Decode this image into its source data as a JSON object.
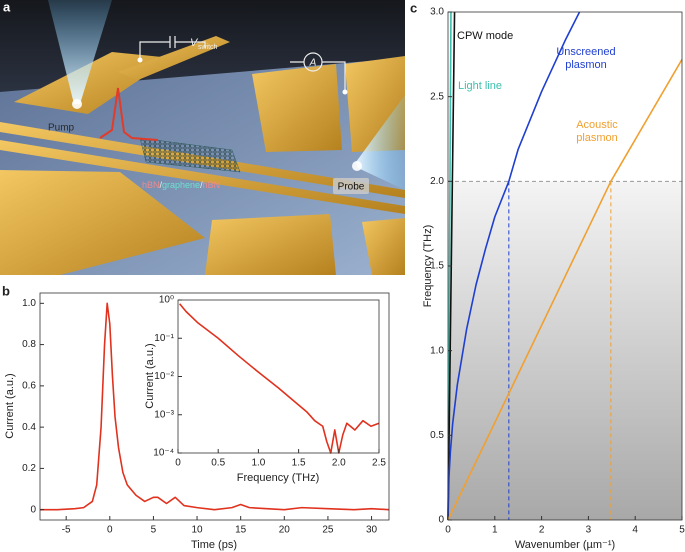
{
  "illustration": {
    "panel": "a",
    "pump": "Pump",
    "probe": "Probe",
    "switch_symbol": "V",
    "switch_subscript": "switch",
    "ammeter": "A",
    "stack": [
      "hBN",
      "/",
      "graphene",
      "/",
      "hBN"
    ]
  },
  "chart_data": [
    {
      "type": "line",
      "panel": "b",
      "xlabel": "Time (ps)",
      "ylabel": "Current (a.u.)",
      "xlim": [
        -8,
        32
      ],
      "ylim": [
        -0.05,
        1.05
      ],
      "xticks": [
        -5,
        0,
        5,
        10,
        15,
        20,
        25,
        30
      ],
      "yticks": [
        0,
        0.2,
        0.4,
        0.6,
        0.8,
        {
          "value": 1,
          "label": "1.0"
        }
      ],
      "color": "#e0321e",
      "x": [
        -8,
        -6,
        -4,
        -3,
        -2,
        -1.5,
        -1,
        -0.6,
        -0.3,
        0,
        0.3,
        0.6,
        1,
        1.5,
        2,
        3,
        4,
        5,
        5.5,
        6.5,
        7.5,
        8.5,
        10,
        12,
        14,
        15,
        16,
        18,
        20,
        22,
        25,
        28,
        30,
        32
      ],
      "values": [
        0,
        0,
        0.005,
        0.01,
        0.04,
        0.12,
        0.4,
        0.8,
        1.0,
        0.9,
        0.65,
        0.45,
        0.3,
        0.18,
        0.12,
        0.07,
        0.04,
        0.06,
        0.06,
        0.03,
        0.06,
        0.02,
        0.01,
        0,
        0.01,
        0.025,
        0.01,
        0.005,
        0,
        0.01,
        0.005,
        0,
        0.005,
        0
      ]
    },
    {
      "type": "line",
      "xlabel": "Frequency (THz)",
      "ylabel": "Current (a.u.)",
      "xlim": [
        0,
        2.5
      ],
      "ylim": [
        0.0001,
        1
      ],
      "log_y": true,
      "xticks": [
        0,
        0.5,
        {
          "value": 1,
          "label": "1.0"
        },
        1.5,
        {
          "value": 2,
          "label": "2.0"
        },
        2.5
      ],
      "yticks": [
        {
          "value": 1,
          "label": "10⁰"
        },
        {
          "value": 0.1,
          "label": "10⁻¹"
        },
        {
          "value": 0.01,
          "label": "10⁻²"
        },
        {
          "value": 0.001,
          "label": "10⁻³"
        },
        {
          "value": 0.0001,
          "label": "10⁻⁴"
        }
      ],
      "color": "#e0321e",
      "x": [
        0.02,
        0.1,
        0.25,
        0.5,
        0.75,
        1.0,
        1.25,
        1.5,
        1.6,
        1.7,
        1.8,
        1.85,
        1.9,
        1.95,
        2.0,
        2.05,
        2.1,
        2.2,
        2.3,
        2.4,
        2.5
      ],
      "values": [
        0.8,
        0.5,
        0.25,
        0.1,
        0.035,
        0.013,
        0.005,
        0.0018,
        0.0012,
        0.0007,
        0.0005,
        0.0002,
        0.0001,
        0.0004,
        0.0001,
        0.0003,
        0.0006,
        0.0004,
        0.0007,
        0.0005,
        0.0006
      ]
    },
    {
      "type": "line",
      "panel": "c",
      "xlabel": "Wavenumber (µm⁻¹)",
      "ylabel": "Frequency (THz)",
      "xlim": [
        0,
        5
      ],
      "ylim": [
        0,
        3
      ],
      "xticks": [
        0,
        1,
        2,
        3,
        4,
        5
      ],
      "yticks": [
        0,
        0.5,
        {
          "value": 1,
          "label": "1.0"
        },
        1.5,
        {
          "value": 2,
          "label": "2.0"
        },
        2.5,
        {
          "value": 3,
          "label": "3.0"
        }
      ],
      "hline": {
        "y": 2,
        "color": "#999999"
      },
      "vlines": [
        {
          "x": 1.3,
          "color": "#1f3fd0"
        },
        {
          "x": 3.48,
          "color": "#f0a030"
        }
      ],
      "series": [
        {
          "name": "Light line",
          "color": "#3cbfae",
          "x": [
            0,
            0.063
          ],
          "values": [
            0,
            3
          ]
        },
        {
          "name": "CPW mode",
          "color": "#111111",
          "x": [
            0,
            0.14
          ],
          "values": [
            0,
            3
          ]
        },
        {
          "name": "Unscreened plasmon",
          "color": "#1f3fd0",
          "x": [
            0,
            0.02,
            0.05,
            0.1,
            0.2,
            0.4,
            0.6,
            0.8,
            1.0,
            1.3,
            1.5,
            2.0,
            2.5,
            2.81
          ],
          "values": [
            0,
            0.25,
            0.4,
            0.57,
            0.8,
            1.13,
            1.39,
            1.6,
            1.79,
            2.0,
            2.19,
            2.53,
            2.83,
            3.0
          ]
        },
        {
          "name": "Acoustic plasmon",
          "color": "#f0a030",
          "x": [
            0,
            3.48,
            5
          ],
          "values": [
            0,
            2,
            2.72
          ]
        }
      ]
    }
  ]
}
